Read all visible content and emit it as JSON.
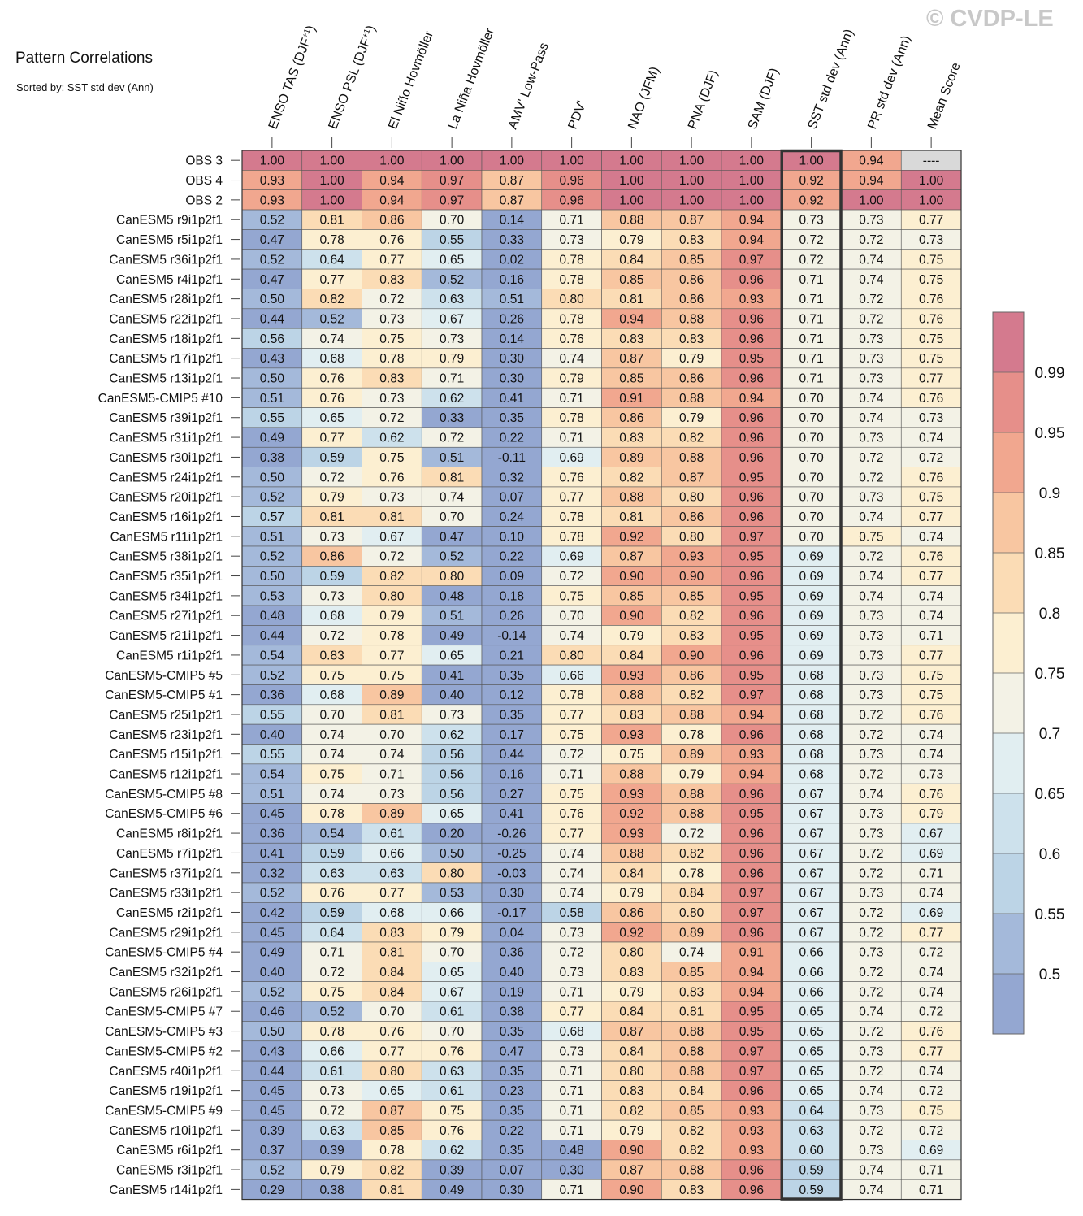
{
  "watermark": "© CVDP-LE",
  "chart_data": {
    "type": "heatmap",
    "title": "Pattern Correlations",
    "subtitle": "Sorted by: SST std dev (Ann)",
    "highlighted_column": "SST std dev (Ann)",
    "columns": [
      {
        "prefix": "ENSO TAS (DJF",
        "sup": "+1",
        "suffix": ")"
      },
      {
        "prefix": "ENSO PSL (DJF",
        "sup": "+1",
        "suffix": ")"
      },
      {
        "prefix": "El Niño Hovmöller",
        "sup": "",
        "suffix": ""
      },
      {
        "prefix": "La Niña Hovmöller",
        "sup": "",
        "suffix": ""
      },
      {
        "prefix": "AMV' Low-Pass",
        "sup": "",
        "suffix": ""
      },
      {
        "prefix": "PDV'",
        "sup": "",
        "suffix": ""
      },
      {
        "prefix": "NAO (JFM)",
        "sup": "",
        "suffix": ""
      },
      {
        "prefix": "PNA (DJF)",
        "sup": "",
        "suffix": ""
      },
      {
        "prefix": "SAM (DJF)",
        "sup": "",
        "suffix": ""
      },
      {
        "prefix": "SST std dev (Ann)",
        "sup": "",
        "suffix": ""
      },
      {
        "prefix": "PR std dev (Ann)",
        "sup": "",
        "suffix": ""
      },
      {
        "prefix": "Mean Score",
        "sup": "",
        "suffix": ""
      }
    ],
    "rows": [
      {
        "name": "OBS 3",
        "values": [
          "1.00",
          "1.00",
          "1.00",
          "1.00",
          "1.00",
          "1.00",
          "1.00",
          "1.00",
          "1.00",
          "1.00",
          "0.94",
          "----"
        ]
      },
      {
        "name": "OBS 4",
        "values": [
          "0.93",
          "1.00",
          "0.94",
          "0.97",
          "0.87",
          "0.96",
          "1.00",
          "1.00",
          "1.00",
          "0.92",
          "0.94",
          "1.00"
        ]
      },
      {
        "name": "OBS 2",
        "values": [
          "0.93",
          "1.00",
          "0.94",
          "0.97",
          "0.87",
          "0.96",
          "1.00",
          "1.00",
          "1.00",
          "0.92",
          "1.00",
          "1.00"
        ]
      },
      {
        "name": "CanESM5 r9i1p2f1",
        "values": [
          "0.52",
          "0.81",
          "0.86",
          "0.70",
          "0.14",
          "0.71",
          "0.88",
          "0.87",
          "0.94",
          "0.73",
          "0.73",
          "0.77"
        ]
      },
      {
        "name": "CanESM5 r5i1p2f1",
        "values": [
          "0.47",
          "0.78",
          "0.76",
          "0.55",
          "0.33",
          "0.73",
          "0.79",
          "0.83",
          "0.94",
          "0.72",
          "0.72",
          "0.73"
        ]
      },
      {
        "name": "CanESM5 r36i1p2f1",
        "values": [
          "0.52",
          "0.64",
          "0.77",
          "0.65",
          "0.02",
          "0.78",
          "0.84",
          "0.85",
          "0.97",
          "0.72",
          "0.74",
          "0.75"
        ]
      },
      {
        "name": "CanESM5 r4i1p2f1",
        "values": [
          "0.47",
          "0.77",
          "0.83",
          "0.52",
          "0.16",
          "0.78",
          "0.85",
          "0.86",
          "0.96",
          "0.71",
          "0.74",
          "0.75"
        ]
      },
      {
        "name": "CanESM5 r28i1p2f1",
        "values": [
          "0.50",
          "0.82",
          "0.72",
          "0.63",
          "0.51",
          "0.80",
          "0.81",
          "0.86",
          "0.93",
          "0.71",
          "0.72",
          "0.76"
        ]
      },
      {
        "name": "CanESM5 r22i1p2f1",
        "values": [
          "0.44",
          "0.52",
          "0.73",
          "0.67",
          "0.26",
          "0.78",
          "0.94",
          "0.88",
          "0.96",
          "0.71",
          "0.72",
          "0.76"
        ]
      },
      {
        "name": "CanESM5 r18i1p2f1",
        "values": [
          "0.56",
          "0.74",
          "0.75",
          "0.73",
          "0.14",
          "0.76",
          "0.83",
          "0.83",
          "0.96",
          "0.71",
          "0.73",
          "0.75"
        ]
      },
      {
        "name": "CanESM5 r17i1p2f1",
        "values": [
          "0.43",
          "0.68",
          "0.78",
          "0.79",
          "0.30",
          "0.74",
          "0.87",
          "0.79",
          "0.95",
          "0.71",
          "0.73",
          "0.75"
        ]
      },
      {
        "name": "CanESM5 r13i1p2f1",
        "values": [
          "0.50",
          "0.76",
          "0.83",
          "0.71",
          "0.30",
          "0.79",
          "0.85",
          "0.86",
          "0.96",
          "0.71",
          "0.73",
          "0.77"
        ]
      },
      {
        "name": "CanESM5-CMIP5 #10",
        "values": [
          "0.51",
          "0.76",
          "0.73",
          "0.62",
          "0.41",
          "0.71",
          "0.91",
          "0.88",
          "0.94",
          "0.70",
          "0.74",
          "0.76"
        ]
      },
      {
        "name": "CanESM5 r39i1p2f1",
        "values": [
          "0.55",
          "0.65",
          "0.72",
          "0.33",
          "0.35",
          "0.78",
          "0.86",
          "0.79",
          "0.96",
          "0.70",
          "0.74",
          "0.73"
        ]
      },
      {
        "name": "CanESM5 r31i1p2f1",
        "values": [
          "0.49",
          "0.77",
          "0.62",
          "0.72",
          "0.22",
          "0.71",
          "0.83",
          "0.82",
          "0.96",
          "0.70",
          "0.73",
          "0.74"
        ]
      },
      {
        "name": "CanESM5 r30i1p2f1",
        "values": [
          "0.38",
          "0.59",
          "0.75",
          "0.51",
          "-0.11",
          "0.69",
          "0.89",
          "0.88",
          "0.96",
          "0.70",
          "0.72",
          "0.72"
        ]
      },
      {
        "name": "CanESM5 r24i1p2f1",
        "values": [
          "0.50",
          "0.72",
          "0.76",
          "0.81",
          "0.32",
          "0.76",
          "0.82",
          "0.87",
          "0.95",
          "0.70",
          "0.72",
          "0.76"
        ]
      },
      {
        "name": "CanESM5 r20i1p2f1",
        "values": [
          "0.52",
          "0.79",
          "0.73",
          "0.74",
          "0.07",
          "0.77",
          "0.88",
          "0.80",
          "0.96",
          "0.70",
          "0.73",
          "0.75"
        ]
      },
      {
        "name": "CanESM5 r16i1p2f1",
        "values": [
          "0.57",
          "0.81",
          "0.81",
          "0.70",
          "0.24",
          "0.78",
          "0.81",
          "0.86",
          "0.96",
          "0.70",
          "0.74",
          "0.77"
        ]
      },
      {
        "name": "CanESM5 r11i1p2f1",
        "values": [
          "0.51",
          "0.73",
          "0.67",
          "0.47",
          "0.10",
          "0.78",
          "0.92",
          "0.80",
          "0.97",
          "0.70",
          "0.75",
          "0.74"
        ]
      },
      {
        "name": "CanESM5 r38i1p2f1",
        "values": [
          "0.52",
          "0.86",
          "0.72",
          "0.52",
          "0.22",
          "0.69",
          "0.87",
          "0.93",
          "0.95",
          "0.69",
          "0.72",
          "0.76"
        ]
      },
      {
        "name": "CanESM5 r35i1p2f1",
        "values": [
          "0.50",
          "0.59",
          "0.82",
          "0.80",
          "0.09",
          "0.72",
          "0.90",
          "0.90",
          "0.96",
          "0.69",
          "0.74",
          "0.77"
        ]
      },
      {
        "name": "CanESM5 r34i1p2f1",
        "values": [
          "0.53",
          "0.73",
          "0.80",
          "0.48",
          "0.18",
          "0.75",
          "0.85",
          "0.85",
          "0.95",
          "0.69",
          "0.74",
          "0.74"
        ]
      },
      {
        "name": "CanESM5 r27i1p2f1",
        "values": [
          "0.48",
          "0.68",
          "0.79",
          "0.51",
          "0.26",
          "0.70",
          "0.90",
          "0.82",
          "0.96",
          "0.69",
          "0.73",
          "0.74"
        ]
      },
      {
        "name": "CanESM5 r21i1p2f1",
        "values": [
          "0.44",
          "0.72",
          "0.78",
          "0.49",
          "-0.14",
          "0.74",
          "0.79",
          "0.83",
          "0.95",
          "0.69",
          "0.73",
          "0.71"
        ]
      },
      {
        "name": "CanESM5 r1i1p2f1",
        "values": [
          "0.54",
          "0.83",
          "0.77",
          "0.65",
          "0.21",
          "0.80",
          "0.84",
          "0.90",
          "0.96",
          "0.69",
          "0.73",
          "0.77"
        ]
      },
      {
        "name": "CanESM5-CMIP5 #5",
        "values": [
          "0.52",
          "0.75",
          "0.75",
          "0.41",
          "0.35",
          "0.66",
          "0.93",
          "0.86",
          "0.95",
          "0.68",
          "0.73",
          "0.75"
        ]
      },
      {
        "name": "CanESM5-CMIP5 #1",
        "values": [
          "0.36",
          "0.68",
          "0.89",
          "0.40",
          "0.12",
          "0.78",
          "0.88",
          "0.82",
          "0.97",
          "0.68",
          "0.73",
          "0.75"
        ]
      },
      {
        "name": "CanESM5 r25i1p2f1",
        "values": [
          "0.55",
          "0.70",
          "0.81",
          "0.73",
          "0.35",
          "0.77",
          "0.83",
          "0.88",
          "0.94",
          "0.68",
          "0.72",
          "0.76"
        ]
      },
      {
        "name": "CanESM5 r23i1p2f1",
        "values": [
          "0.40",
          "0.74",
          "0.70",
          "0.62",
          "0.17",
          "0.75",
          "0.93",
          "0.78",
          "0.96",
          "0.68",
          "0.72",
          "0.74"
        ]
      },
      {
        "name": "CanESM5 r15i1p2f1",
        "values": [
          "0.55",
          "0.74",
          "0.74",
          "0.56",
          "0.44",
          "0.72",
          "0.75",
          "0.89",
          "0.93",
          "0.68",
          "0.73",
          "0.74"
        ]
      },
      {
        "name": "CanESM5 r12i1p2f1",
        "values": [
          "0.54",
          "0.75",
          "0.71",
          "0.56",
          "0.16",
          "0.71",
          "0.88",
          "0.79",
          "0.94",
          "0.68",
          "0.72",
          "0.73"
        ]
      },
      {
        "name": "CanESM5-CMIP5 #8",
        "values": [
          "0.51",
          "0.74",
          "0.73",
          "0.56",
          "0.27",
          "0.75",
          "0.93",
          "0.88",
          "0.96",
          "0.67",
          "0.74",
          "0.76"
        ]
      },
      {
        "name": "CanESM5-CMIP5 #6",
        "values": [
          "0.45",
          "0.78",
          "0.89",
          "0.65",
          "0.41",
          "0.76",
          "0.92",
          "0.88",
          "0.95",
          "0.67",
          "0.73",
          "0.79"
        ]
      },
      {
        "name": "CanESM5 r8i1p2f1",
        "values": [
          "0.36",
          "0.54",
          "0.61",
          "0.20",
          "-0.26",
          "0.77",
          "0.93",
          "0.72",
          "0.96",
          "0.67",
          "0.73",
          "0.67"
        ]
      },
      {
        "name": "CanESM5 r7i1p2f1",
        "values": [
          "0.41",
          "0.59",
          "0.66",
          "0.50",
          "-0.25",
          "0.74",
          "0.88",
          "0.82",
          "0.96",
          "0.67",
          "0.72",
          "0.69"
        ]
      },
      {
        "name": "CanESM5 r37i1p2f1",
        "values": [
          "0.32",
          "0.63",
          "0.63",
          "0.80",
          "-0.03",
          "0.74",
          "0.84",
          "0.78",
          "0.96",
          "0.67",
          "0.72",
          "0.71"
        ]
      },
      {
        "name": "CanESM5 r33i1p2f1",
        "values": [
          "0.52",
          "0.76",
          "0.77",
          "0.53",
          "0.30",
          "0.74",
          "0.79",
          "0.84",
          "0.97",
          "0.67",
          "0.73",
          "0.74"
        ]
      },
      {
        "name": "CanESM5 r2i1p2f1",
        "values": [
          "0.42",
          "0.59",
          "0.68",
          "0.66",
          "-0.17",
          "0.58",
          "0.86",
          "0.80",
          "0.97",
          "0.67",
          "0.72",
          "0.69"
        ]
      },
      {
        "name": "CanESM5 r29i1p2f1",
        "values": [
          "0.45",
          "0.64",
          "0.83",
          "0.79",
          "0.04",
          "0.73",
          "0.92",
          "0.89",
          "0.96",
          "0.67",
          "0.72",
          "0.77"
        ]
      },
      {
        "name": "CanESM5-CMIP5 #4",
        "values": [
          "0.49",
          "0.71",
          "0.81",
          "0.70",
          "0.36",
          "0.72",
          "0.80",
          "0.74",
          "0.91",
          "0.66",
          "0.73",
          "0.72"
        ]
      },
      {
        "name": "CanESM5 r32i1p2f1",
        "values": [
          "0.40",
          "0.72",
          "0.84",
          "0.65",
          "0.40",
          "0.73",
          "0.83",
          "0.85",
          "0.94",
          "0.66",
          "0.72",
          "0.74"
        ]
      },
      {
        "name": "CanESM5 r26i1p2f1",
        "values": [
          "0.52",
          "0.75",
          "0.84",
          "0.67",
          "0.19",
          "0.71",
          "0.79",
          "0.83",
          "0.94",
          "0.66",
          "0.72",
          "0.74"
        ]
      },
      {
        "name": "CanESM5-CMIP5 #7",
        "values": [
          "0.46",
          "0.52",
          "0.70",
          "0.61",
          "0.38",
          "0.77",
          "0.84",
          "0.81",
          "0.95",
          "0.65",
          "0.74",
          "0.72"
        ]
      },
      {
        "name": "CanESM5-CMIP5 #3",
        "values": [
          "0.50",
          "0.78",
          "0.76",
          "0.70",
          "0.35",
          "0.68",
          "0.87",
          "0.88",
          "0.95",
          "0.65",
          "0.72",
          "0.76"
        ]
      },
      {
        "name": "CanESM5-CMIP5 #2",
        "values": [
          "0.43",
          "0.66",
          "0.77",
          "0.76",
          "0.47",
          "0.73",
          "0.84",
          "0.88",
          "0.97",
          "0.65",
          "0.73",
          "0.77"
        ]
      },
      {
        "name": "CanESM5 r40i1p2f1",
        "values": [
          "0.44",
          "0.61",
          "0.80",
          "0.63",
          "0.35",
          "0.71",
          "0.80",
          "0.88",
          "0.97",
          "0.65",
          "0.72",
          "0.74"
        ]
      },
      {
        "name": "CanESM5 r19i1p2f1",
        "values": [
          "0.45",
          "0.73",
          "0.65",
          "0.61",
          "0.23",
          "0.71",
          "0.83",
          "0.84",
          "0.96",
          "0.65",
          "0.74",
          "0.72"
        ]
      },
      {
        "name": "CanESM5-CMIP5 #9",
        "values": [
          "0.45",
          "0.72",
          "0.87",
          "0.75",
          "0.35",
          "0.71",
          "0.82",
          "0.85",
          "0.93",
          "0.64",
          "0.73",
          "0.75"
        ]
      },
      {
        "name": "CanESM5 r10i1p2f1",
        "values": [
          "0.39",
          "0.63",
          "0.85",
          "0.76",
          "0.22",
          "0.71",
          "0.79",
          "0.82",
          "0.93",
          "0.63",
          "0.72",
          "0.72"
        ]
      },
      {
        "name": "CanESM5 r6i1p2f1",
        "values": [
          "0.37",
          "0.39",
          "0.78",
          "0.62",
          "0.35",
          "0.48",
          "0.90",
          "0.82",
          "0.93",
          "0.60",
          "0.73",
          "0.69"
        ]
      },
      {
        "name": "CanESM5 r3i1p2f1",
        "values": [
          "0.52",
          "0.79",
          "0.82",
          "0.39",
          "0.07",
          "0.30",
          "0.87",
          "0.88",
          "0.96",
          "0.59",
          "0.74",
          "0.71"
        ]
      },
      {
        "name": "CanESM5 r14i1p2f1",
        "values": [
          "0.29",
          "0.38",
          "0.81",
          "0.49",
          "0.30",
          "0.71",
          "0.90",
          "0.83",
          "0.96",
          "0.59",
          "0.74",
          "0.71"
        ]
      }
    ],
    "colorbar": {
      "ticks": [
        "0.99",
        "0.95",
        "0.9",
        "0.85",
        "0.8",
        "0.75",
        "0.7",
        "0.65",
        "0.6",
        "0.55",
        "0.5"
      ],
      "bins": [
        {
          "min": 0.99,
          "color": "#d47a8e"
        },
        {
          "min": 0.95,
          "color": "#e68f8a"
        },
        {
          "min": 0.9,
          "color": "#f1a78f"
        },
        {
          "min": 0.85,
          "color": "#f8c6a1"
        },
        {
          "min": 0.8,
          "color": "#fbdcb5"
        },
        {
          "min": 0.75,
          "color": "#fcefd1"
        },
        {
          "min": 0.7,
          "color": "#f3f2e6"
        },
        {
          "min": 0.65,
          "color": "#e1eef1"
        },
        {
          "min": 0.6,
          "color": "#cde1ec"
        },
        {
          "min": 0.55,
          "color": "#bcd4e6"
        },
        {
          "min": 0.5,
          "color": "#a4b9da"
        },
        {
          "min": -1.0,
          "color": "#94a7d1"
        }
      ],
      "missing_color": "#d9d9d9"
    }
  }
}
